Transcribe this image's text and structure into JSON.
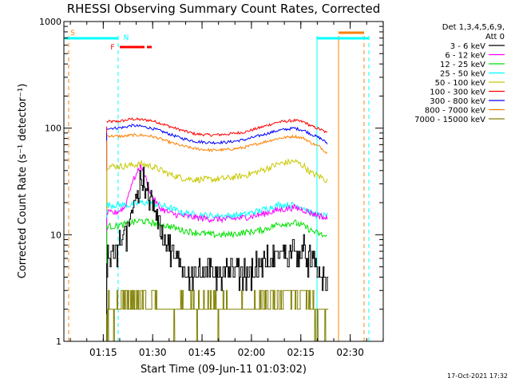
{
  "chart_data": {
    "type": "line",
    "title": "RHESSI Observing Summary Count Rates, Corrected",
    "xlabel": "Start Time (09-Jun-11 01:03:02)",
    "ylabel": "Corrected Count Rate (s⁻¹ detector⁻¹)",
    "yscale": "log",
    "ylim": [
      1,
      1000
    ],
    "xlim": [
      "01:03:02",
      "02:40:00"
    ],
    "x_ticks": [
      "01:15",
      "01:30",
      "01:45",
      "02:00",
      "02:15",
      "02:30"
    ],
    "y_ticks": [
      "1",
      "10",
      "100",
      "1000"
    ],
    "timestamp": "17-Oct-2021 17:32",
    "legend": {
      "position": "right",
      "header": [
        "Det 1,3,4,5,6,9,",
        "Att 0"
      ],
      "entries": [
        {
          "label": "3 - 6 keV",
          "color": "#000000"
        },
        {
          "label": "6 - 12 keV",
          "color": "#ff00ff"
        },
        {
          "label": "12 - 25 keV",
          "color": "#00e000"
        },
        {
          "label": "25 - 50 keV",
          "color": "#00ffff"
        },
        {
          "label": "50 - 100 keV",
          "color": "#c8c800"
        },
        {
          "label": "100 - 300 keV",
          "color": "#ff0000"
        },
        {
          "label": "300 - 800 keV",
          "color": "#0000ff"
        },
        {
          "label": "800 - 7000 keV",
          "color": "#ff8000"
        },
        {
          "label": "7000 - 15000 keV",
          "color": "#808000"
        }
      ]
    },
    "flags": [
      {
        "label": "S",
        "color": "#ff8000"
      },
      {
        "label": "N",
        "color": "#00ffff"
      },
      {
        "label": "F",
        "color": "#ff0000"
      }
    ],
    "x_times_min": [
      13.0,
      15.5,
      18.5,
      20.5,
      23.5,
      26.5,
      29.0,
      32.0,
      36.0,
      40.0,
      45.0,
      50.0,
      55.0,
      60.0,
      65.0,
      70.0,
      73.0,
      75.0,
      78.0,
      80.0
    ],
    "series": [
      {
        "name": "100 - 300 keV",
        "color": "#ff0000",
        "values": [
          115,
          115,
          118,
          122,
          120,
          118,
          112,
          104,
          95,
          88,
          86,
          88,
          92,
          102,
          114,
          118,
          114,
          105,
          97,
          90
        ]
      },
      {
        "name": "300 - 800 keV",
        "color": "#0000ff",
        "values": [
          100,
          100,
          102,
          106,
          104,
          100,
          95,
          88,
          80,
          75,
          73,
          74,
          78,
          86,
          95,
          100,
          95,
          88,
          80,
          72
        ]
      },
      {
        "name": "800 - 7000 keV",
        "color": "#ff8000",
        "values": [
          85,
          84,
          84,
          86,
          86,
          84,
          80,
          74,
          68,
          64,
          62,
          63,
          66,
          73,
          80,
          84,
          80,
          73,
          66,
          58
        ]
      },
      {
        "name": "50 - 100 keV",
        "color": "#c8c800",
        "values": [
          44,
          44,
          44,
          45,
          46,
          44,
          41,
          37,
          34,
          33,
          33,
          34,
          36,
          40,
          46,
          49,
          44,
          38,
          35,
          32
        ]
      },
      {
        "name": "25 - 50 keV",
        "color": "#00ffff",
        "values": [
          19,
          19,
          19,
          19,
          20,
          20,
          19,
          18,
          16,
          15.5,
          15,
          15,
          15.5,
          17,
          19,
          19,
          18,
          16,
          15,
          15
        ]
      },
      {
        "name": "6 - 12 keV",
        "color": "#ff00ff",
        "values": [
          16,
          16,
          18,
          30,
          45,
          24,
          18,
          16,
          15,
          14.5,
          14,
          14,
          14.5,
          15.5,
          17,
          18,
          17,
          16,
          15,
          14
        ]
      },
      {
        "name": "12 - 25 keV",
        "color": "#00e000",
        "values": [
          12,
          12,
          12.5,
          13,
          13.5,
          13,
          12.5,
          12,
          11,
          10.5,
          10,
          10,
          10.5,
          11,
          12.5,
          13,
          12,
          11,
          10,
          9.5
        ]
      },
      {
        "name": "3 - 6 keV",
        "color": "#000000",
        "values": [
          6,
          6.5,
          10,
          18,
          32,
          22,
          12,
          7,
          5,
          4.5,
          4.5,
          4.5,
          4.5,
          5,
          6.5,
          7,
          7,
          5.5,
          4,
          3.5
        ]
      },
      {
        "name": "7000 - 15000 keV",
        "color": "#808000",
        "values": [
          2,
          2,
          2.5,
          2.5,
          2.5,
          2.5,
          2,
          2,
          2,
          2,
          2,
          2,
          2,
          2.5,
          3,
          3.2,
          3,
          2.5,
          2,
          2
        ]
      }
    ]
  }
}
